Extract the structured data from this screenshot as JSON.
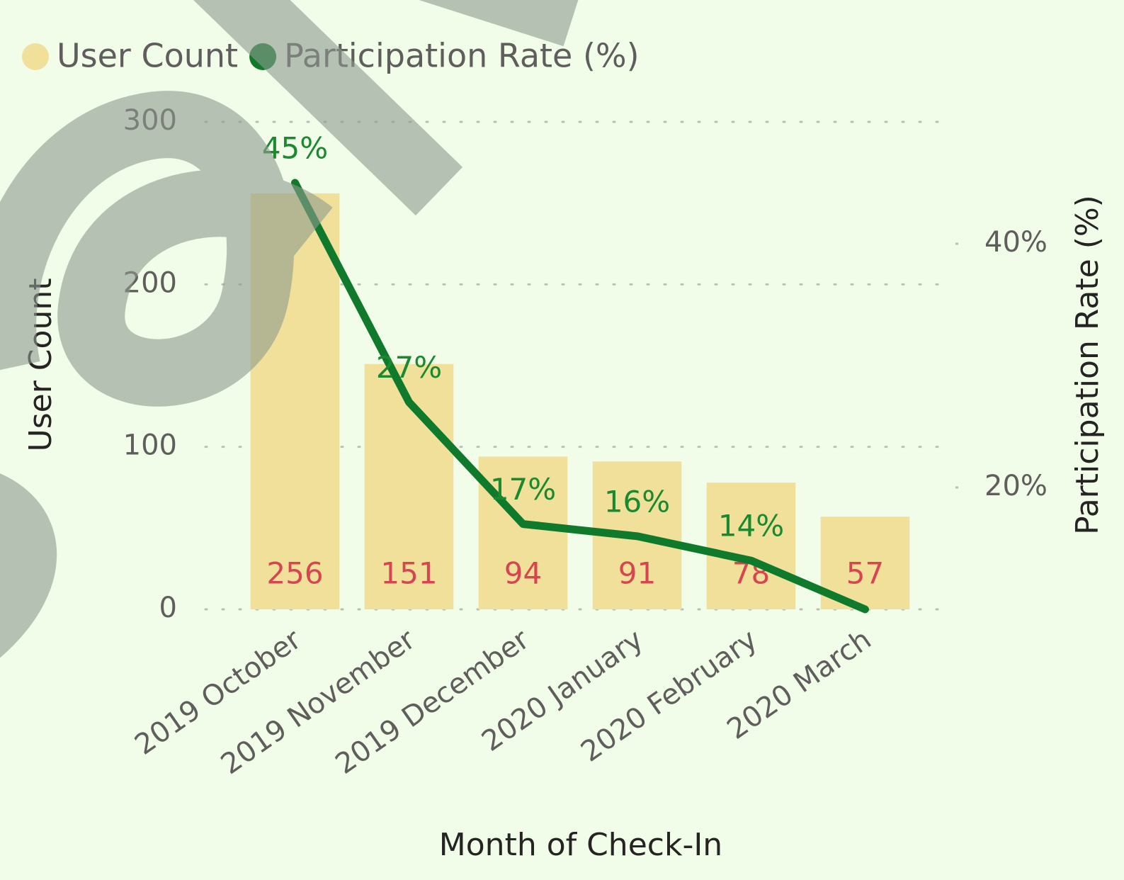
{
  "chart_data": {
    "type": "bar",
    "legend": "top-left",
    "grid": true,
    "x_label": "Month of Check-In",
    "y_label": "User Count",
    "y2_label": "Participation Rate (%)",
    "categories": [
      "2019 October",
      "2019 November",
      "2019 December",
      "2020 January",
      "2020 February",
      "2020 March"
    ],
    "ylim": [
      0,
      300
    ],
    "yticks": [
      0,
      100,
      200,
      300
    ],
    "y2lim": [
      10,
      50
    ],
    "y2ticks": [
      {
        "value": 20,
        "label": "20%"
      },
      {
        "value": 40,
        "label": "40%"
      }
    ],
    "series": [
      {
        "name": "User Count",
        "type": "bar",
        "color": "#f0e09a",
        "label_color": "#d64550",
        "values": [
          256,
          151,
          94,
          91,
          78,
          57
        ]
      },
      {
        "name": "Participation Rate (%)",
        "type": "line",
        "axis": "y2",
        "color": "#0f7a2c",
        "label_color": "#1a8a30",
        "values": [
          45,
          27,
          17,
          16,
          14,
          10
        ],
        "value_labels": [
          "45%",
          "27%",
          "17%",
          "16%",
          "14%",
          null
        ]
      }
    ]
  }
}
